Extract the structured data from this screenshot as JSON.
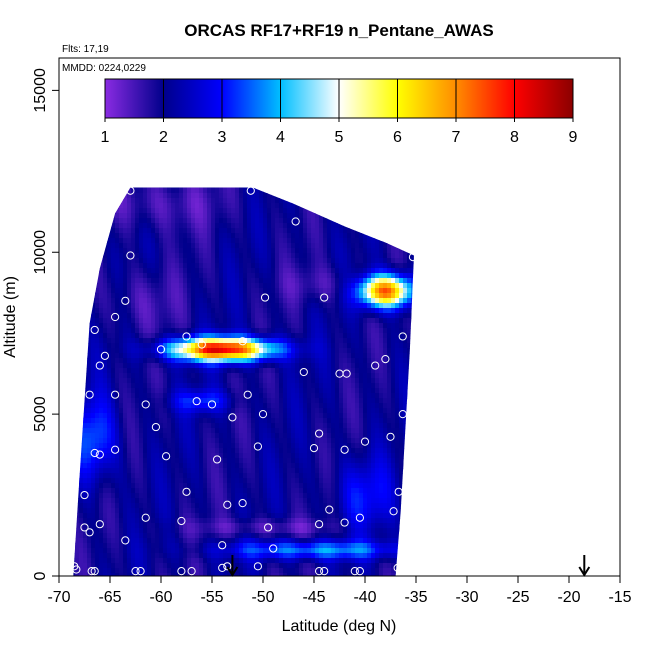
{
  "chart_data": {
    "type": "heatmap",
    "title": "ORCAS RF17+RF19 n_Pentane_AWAS",
    "flights_label": "Flts: 17,19",
    "date_label": "MMDD: 0224,0229",
    "xlabel": "Latitude (deg N)",
    "ylabel": "Altitude (m)",
    "xlim": [
      -70,
      -15
    ],
    "ylim": [
      0,
      16000
    ],
    "x_ticks": [
      -70,
      -65,
      -60,
      -55,
      -50,
      -45,
      -40,
      -35,
      -30,
      -25,
      -20,
      -15
    ],
    "y_ticks": [
      0,
      5000,
      10000,
      15000
    ],
    "colorbar": {
      "min": 1,
      "max": 9,
      "ticks": [
        1,
        2,
        3,
        4,
        5,
        6,
        7,
        8,
        9
      ],
      "colors": [
        "#8a2be2",
        "#00008b",
        "#0000ff",
        "#00bfff",
        "#ffffff",
        "#ffff00",
        "#ff8c00",
        "#ff0000",
        "#8b0000"
      ]
    },
    "footprint": {
      "top_boundary": [
        [
          -68.6,
          0
        ],
        [
          -68,
          3000
        ],
        [
          -67,
          7800
        ],
        [
          -66,
          9500
        ],
        [
          -64.5,
          11200
        ],
        [
          -63,
          12000
        ],
        [
          -51,
          12000
        ],
        [
          -47,
          11500
        ],
        [
          -42,
          10800
        ],
        [
          -38,
          10300
        ],
        [
          -35.2,
          9900
        ]
      ],
      "bottom_right": [
        [
          -35.2,
          9900
        ],
        [
          -35.6,
          7000
        ],
        [
          -36.5,
          2000
        ],
        [
          -37,
          0
        ]
      ],
      "background_value": 2.0
    },
    "hotspots": [
      {
        "lat": -54,
        "alt": 7000,
        "value": 8.2,
        "sx": 3.5,
        "sy": 250
      },
      {
        "lat": -38,
        "alt": 8800,
        "value": 7.5,
        "sx": 1.8,
        "sy": 350
      },
      {
        "lat": -45,
        "alt": 800,
        "value": 3.8,
        "sx": 6,
        "sy": 200
      },
      {
        "lat": -66.5,
        "alt": 4200,
        "value": 3.5,
        "sx": 1.5,
        "sy": 900
      },
      {
        "lat": -56,
        "alt": 5400,
        "value": 3.2,
        "sx": 2,
        "sy": 250
      },
      {
        "lat": -40,
        "alt": 2500,
        "value": 3.0,
        "sx": 2,
        "sy": 800
      },
      {
        "lat": -60,
        "alt": 11500,
        "value": 1.4,
        "sx": 4,
        "sy": 600
      },
      {
        "lat": -62,
        "alt": 8500,
        "value": 1.5,
        "sx": 2.5,
        "sy": 700
      },
      {
        "lat": -50,
        "alt": 1500,
        "value": 1.4,
        "sx": 5,
        "sy": 200
      },
      {
        "lat": -44,
        "alt": 9000,
        "value": 1.5,
        "sx": 3,
        "sy": 400
      }
    ],
    "samples": [
      [
        -63,
        11900
      ],
      [
        -51.2,
        11900
      ],
      [
        -46.8,
        10950
      ],
      [
        -35.3,
        9850
      ],
      [
        -63,
        9900
      ],
      [
        -49.8,
        8600
      ],
      [
        -44,
        8600
      ],
      [
        -63.5,
        8500
      ],
      [
        -64.5,
        8000
      ],
      [
        -66.5,
        7600
      ],
      [
        -57.5,
        7400
      ],
      [
        -52,
        7250
      ],
      [
        -56,
        7150
      ],
      [
        -60,
        7000
      ],
      [
        -65.5,
        6800
      ],
      [
        -46,
        6300
      ],
      [
        -42.5,
        6250
      ],
      [
        -41.8,
        6250
      ],
      [
        -39,
        6500
      ],
      [
        -38,
        6700
      ],
      [
        -36.3,
        7400
      ],
      [
        -66,
        6500
      ],
      [
        -67,
        5600
      ],
      [
        -64.5,
        5600
      ],
      [
        -61.5,
        5300
      ],
      [
        -56.5,
        5400
      ],
      [
        -55,
        5300
      ],
      [
        -51.5,
        5600
      ],
      [
        -50,
        5000
      ],
      [
        -53,
        4900
      ],
      [
        -36.3,
        5000
      ],
      [
        -60.5,
        4600
      ],
      [
        -44.5,
        4400
      ],
      [
        -37.5,
        4300
      ],
      [
        -40,
        4150
      ],
      [
        -42,
        3900
      ],
      [
        -45,
        3950
      ],
      [
        -50.5,
        4000
      ],
      [
        -64.5,
        3900
      ],
      [
        -66.5,
        3800
      ],
      [
        -66,
        3750
      ],
      [
        -54.5,
        3600
      ],
      [
        -59.5,
        3700
      ],
      [
        -57.5,
        2600
      ],
      [
        -67.5,
        2500
      ],
      [
        -36.7,
        2600
      ],
      [
        -52,
        2250
      ],
      [
        -53.5,
        2200
      ],
      [
        -37.2,
        2000
      ],
      [
        -43.5,
        2050
      ],
      [
        -61.5,
        1800
      ],
      [
        -58,
        1700
      ],
      [
        -66,
        1600
      ],
      [
        -44.5,
        1600
      ],
      [
        -42,
        1650
      ],
      [
        -40.5,
        1800
      ],
      [
        -67.5,
        1500
      ],
      [
        -67,
        1350
      ],
      [
        -49.5,
        1500
      ],
      [
        -63.5,
        1100
      ],
      [
        -54,
        950
      ],
      [
        -49,
        850
      ],
      [
        -50.5,
        300
      ],
      [
        -53.5,
        300
      ],
      [
        -54,
        250
      ],
      [
        -57,
        150
      ],
      [
        -58,
        150
      ],
      [
        -62.5,
        150
      ],
      [
        -62,
        150
      ],
      [
        -66.5,
        150
      ],
      [
        -66.8,
        150
      ],
      [
        -68.3,
        200
      ],
      [
        -68.5,
        300
      ],
      [
        -44,
        150
      ],
      [
        -44.5,
        150
      ],
      [
        -40.5,
        150
      ],
      [
        -41,
        150
      ],
      [
        -36.5,
        150
      ],
      [
        -36.8,
        250
      ]
    ],
    "arrows": [
      -53,
      -18.5
    ]
  }
}
